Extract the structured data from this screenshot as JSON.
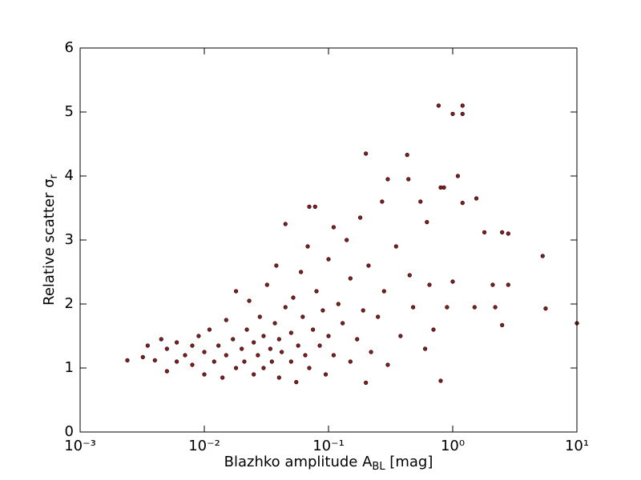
{
  "chart_data": {
    "type": "scatter",
    "xlabel": [
      "Blazhko amplitude A",
      "BL",
      " [mag]"
    ],
    "ylabel": [
      "Relative scatter σ",
      "r"
    ],
    "xscale": "log",
    "xlim": [
      0.001,
      10
    ],
    "xticks": [
      {
        "value": 0.001,
        "label": "10⁻³"
      },
      {
        "value": 0.01,
        "label": "10⁻²"
      },
      {
        "value": 0.1,
        "label": "10⁻¹"
      },
      {
        "value": 1,
        "label": "10⁰"
      },
      {
        "value": 10,
        "label": "10¹"
      }
    ],
    "ylim": [
      0,
      6
    ],
    "yticks": [
      0,
      1,
      2,
      3,
      4,
      5,
      6
    ],
    "color": "#8b1a1a",
    "edgecolor": "#000000",
    "x": [
      0.0024,
      0.0032,
      0.0035,
      0.004,
      0.0045,
      0.005,
      0.005,
      0.006,
      0.006,
      0.007,
      0.008,
      0.008,
      0.009,
      0.01,
      0.01,
      0.011,
      0.012,
      0.013,
      0.014,
      0.015,
      0.015,
      0.017,
      0.018,
      0.018,
      0.02,
      0.021,
      0.022,
      0.023,
      0.025,
      0.025,
      0.027,
      0.028,
      0.03,
      0.03,
      0.032,
      0.034,
      0.035,
      0.037,
      0.038,
      0.04,
      0.04,
      0.042,
      0.045,
      0.045,
      0.05,
      0.05,
      0.052,
      0.055,
      0.057,
      0.06,
      0.062,
      0.065,
      0.068,
      0.07,
      0.07,
      0.075,
      0.078,
      0.08,
      0.085,
      0.09,
      0.095,
      0.1,
      0.1,
      0.11,
      0.11,
      0.12,
      0.13,
      0.14,
      0.15,
      0.15,
      0.17,
      0.18,
      0.19,
      0.2,
      0.2,
      0.21,
      0.22,
      0.25,
      0.27,
      0.28,
      0.3,
      0.3,
      0.35,
      0.38,
      0.43,
      0.44,
      0.45,
      0.48,
      0.55,
      0.6,
      0.62,
      0.65,
      0.7,
      0.77,
      0.8,
      0.8,
      0.85,
      0.9,
      1.0,
      1.0,
      1.1,
      1.2,
      1.2,
      1.2,
      1.5,
      1.55,
      1.8,
      2.1,
      2.2,
      2.5,
      2.5,
      2.8,
      2.8,
      5.3,
      5.6,
      10
    ],
    "values": [
      1.12,
      1.17,
      1.35,
      1.12,
      1.45,
      0.95,
      1.3,
      1.1,
      1.4,
      1.2,
      1.05,
      1.35,
      1.5,
      0.9,
      1.25,
      1.6,
      1.1,
      1.35,
      0.85,
      1.2,
      1.75,
      1.45,
      1.0,
      2.2,
      1.3,
      1.1,
      1.6,
      2.05,
      0.9,
      1.4,
      1.2,
      1.8,
      1.0,
      1.5,
      2.3,
      1.3,
      1.1,
      1.7,
      2.6,
      0.85,
      1.45,
      1.25,
      1.95,
      3.25,
      1.1,
      1.55,
      2.1,
      0.78,
      1.35,
      2.5,
      1.8,
      1.2,
      2.9,
      1.0,
      3.52,
      1.6,
      3.52,
      2.2,
      1.35,
      1.9,
      0.9,
      2.7,
      1.5,
      3.2,
      1.2,
      2.0,
      1.7,
      3.0,
      1.1,
      2.4,
      1.45,
      3.35,
      1.9,
      4.35,
      0.77,
      2.6,
      1.25,
      1.8,
      3.6,
      2.2,
      3.95,
      1.05,
      2.9,
      1.5,
      4.33,
      3.95,
      2.45,
      1.95,
      3.6,
      1.3,
      3.28,
      2.3,
      1.6,
      5.1,
      3.82,
      0.8,
      3.82,
      1.95,
      4.97,
      2.35,
      4.0,
      3.58,
      4.97,
      5.1,
      1.95,
      3.65,
      3.12,
      2.3,
      1.95,
      1.67,
      3.12,
      2.3,
      3.1,
      2.75,
      1.93,
      1.7
    ]
  }
}
